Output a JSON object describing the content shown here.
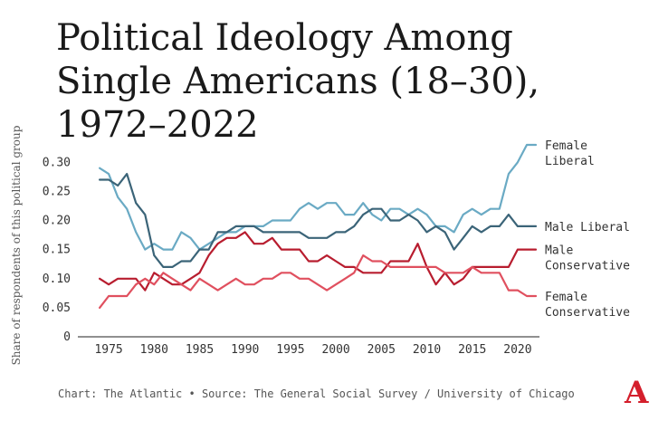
{
  "chart_data": {
    "type": "line",
    "title": "Political Ideology Among Single Americans (18–30), 1972–2022",
    "ylabel": "Share of respondents of this political group",
    "ylim": [
      0,
      0.33
    ],
    "xlim": [
      1972,
      2022
    ],
    "yticks": [
      "0",
      "0.05",
      "0.10",
      "0.15",
      "0.20",
      "0.25",
      "0.30"
    ],
    "xticks": [
      "1975",
      "1980",
      "1985",
      "1990",
      "1995",
      "2000",
      "2005",
      "2010",
      "2015",
      "2020"
    ],
    "x": [
      1974,
      1975,
      1976,
      1977,
      1978,
      1979,
      1980,
      1981,
      1982,
      1983,
      1984,
      1985,
      1986,
      1987,
      1988,
      1989,
      1990,
      1991,
      1992,
      1993,
      1994,
      1995,
      1996,
      1997,
      1998,
      1999,
      2000,
      2001,
      2002,
      2003,
      2004,
      2005,
      2006,
      2007,
      2008,
      2009,
      2010,
      2011,
      2012,
      2013,
      2014,
      2015,
      2016,
      2017,
      2018,
      2019,
      2020,
      2021,
      2022
    ],
    "series": [
      {
        "name": "Female Liberal",
        "label_lines": [
          "Female",
          "Liberal"
        ],
        "color": "#6aaac4",
        "values": [
          0.29,
          0.28,
          0.24,
          0.22,
          0.18,
          0.15,
          0.16,
          0.15,
          0.15,
          0.18,
          0.17,
          0.15,
          0.16,
          0.17,
          0.18,
          0.18,
          0.19,
          0.19,
          0.19,
          0.2,
          0.2,
          0.2,
          0.22,
          0.23,
          0.22,
          0.23,
          0.23,
          0.21,
          0.21,
          0.23,
          0.21,
          0.2,
          0.22,
          0.22,
          0.21,
          0.22,
          0.21,
          0.19,
          0.19,
          0.18,
          0.21,
          0.22,
          0.21,
          0.22,
          0.22,
          0.28,
          0.3,
          0.33,
          0.33
        ]
      },
      {
        "name": "Male Liberal",
        "label_lines": [
          "Male Liberal"
        ],
        "color": "#3b6478",
        "values": [
          0.27,
          0.27,
          0.26,
          0.28,
          0.23,
          0.21,
          0.14,
          0.12,
          0.12,
          0.13,
          0.13,
          0.15,
          0.15,
          0.18,
          0.18,
          0.19,
          0.19,
          0.19,
          0.18,
          0.18,
          0.18,
          0.18,
          0.18,
          0.17,
          0.17,
          0.17,
          0.18,
          0.18,
          0.19,
          0.21,
          0.22,
          0.22,
          0.2,
          0.2,
          0.21,
          0.2,
          0.18,
          0.19,
          0.18,
          0.15,
          0.17,
          0.19,
          0.18,
          0.19,
          0.19,
          0.21,
          0.19,
          0.19,
          0.19
        ]
      },
      {
        "name": "Male Conservative",
        "label_lines": [
          "Male",
          "Conservative"
        ],
        "color": "#b81d2f",
        "values": [
          0.1,
          0.09,
          0.1,
          0.1,
          0.1,
          0.08,
          0.11,
          0.1,
          0.09,
          0.09,
          0.1,
          0.11,
          0.14,
          0.16,
          0.17,
          0.17,
          0.18,
          0.16,
          0.16,
          0.17,
          0.15,
          0.15,
          0.15,
          0.13,
          0.13,
          0.14,
          0.13,
          0.12,
          0.12,
          0.11,
          0.11,
          0.11,
          0.13,
          0.13,
          0.13,
          0.16,
          0.12,
          0.09,
          0.11,
          0.09,
          0.1,
          0.12,
          0.12,
          0.12,
          0.12,
          0.12,
          0.15,
          0.15,
          0.15
        ]
      },
      {
        "name": "Female Conservative",
        "label_lines": [
          "Female",
          "Conservative"
        ],
        "color": "#e0505f",
        "values": [
          0.05,
          0.07,
          0.07,
          0.07,
          0.09,
          0.1,
          0.09,
          0.11,
          0.1,
          0.09,
          0.08,
          0.1,
          0.09,
          0.08,
          0.09,
          0.1,
          0.09,
          0.09,
          0.1,
          0.1,
          0.11,
          0.11,
          0.1,
          0.1,
          0.09,
          0.08,
          0.09,
          0.1,
          0.11,
          0.14,
          0.13,
          0.13,
          0.12,
          0.12,
          0.12,
          0.12,
          0.12,
          0.12,
          0.11,
          0.11,
          0.11,
          0.12,
          0.11,
          0.11,
          0.11,
          0.08,
          0.08,
          0.07,
          0.07
        ]
      }
    ]
  },
  "footer": {
    "credit": "Chart: The Atlantic • Source: The General Social Survey / University of Chicago",
    "logo": "A"
  }
}
